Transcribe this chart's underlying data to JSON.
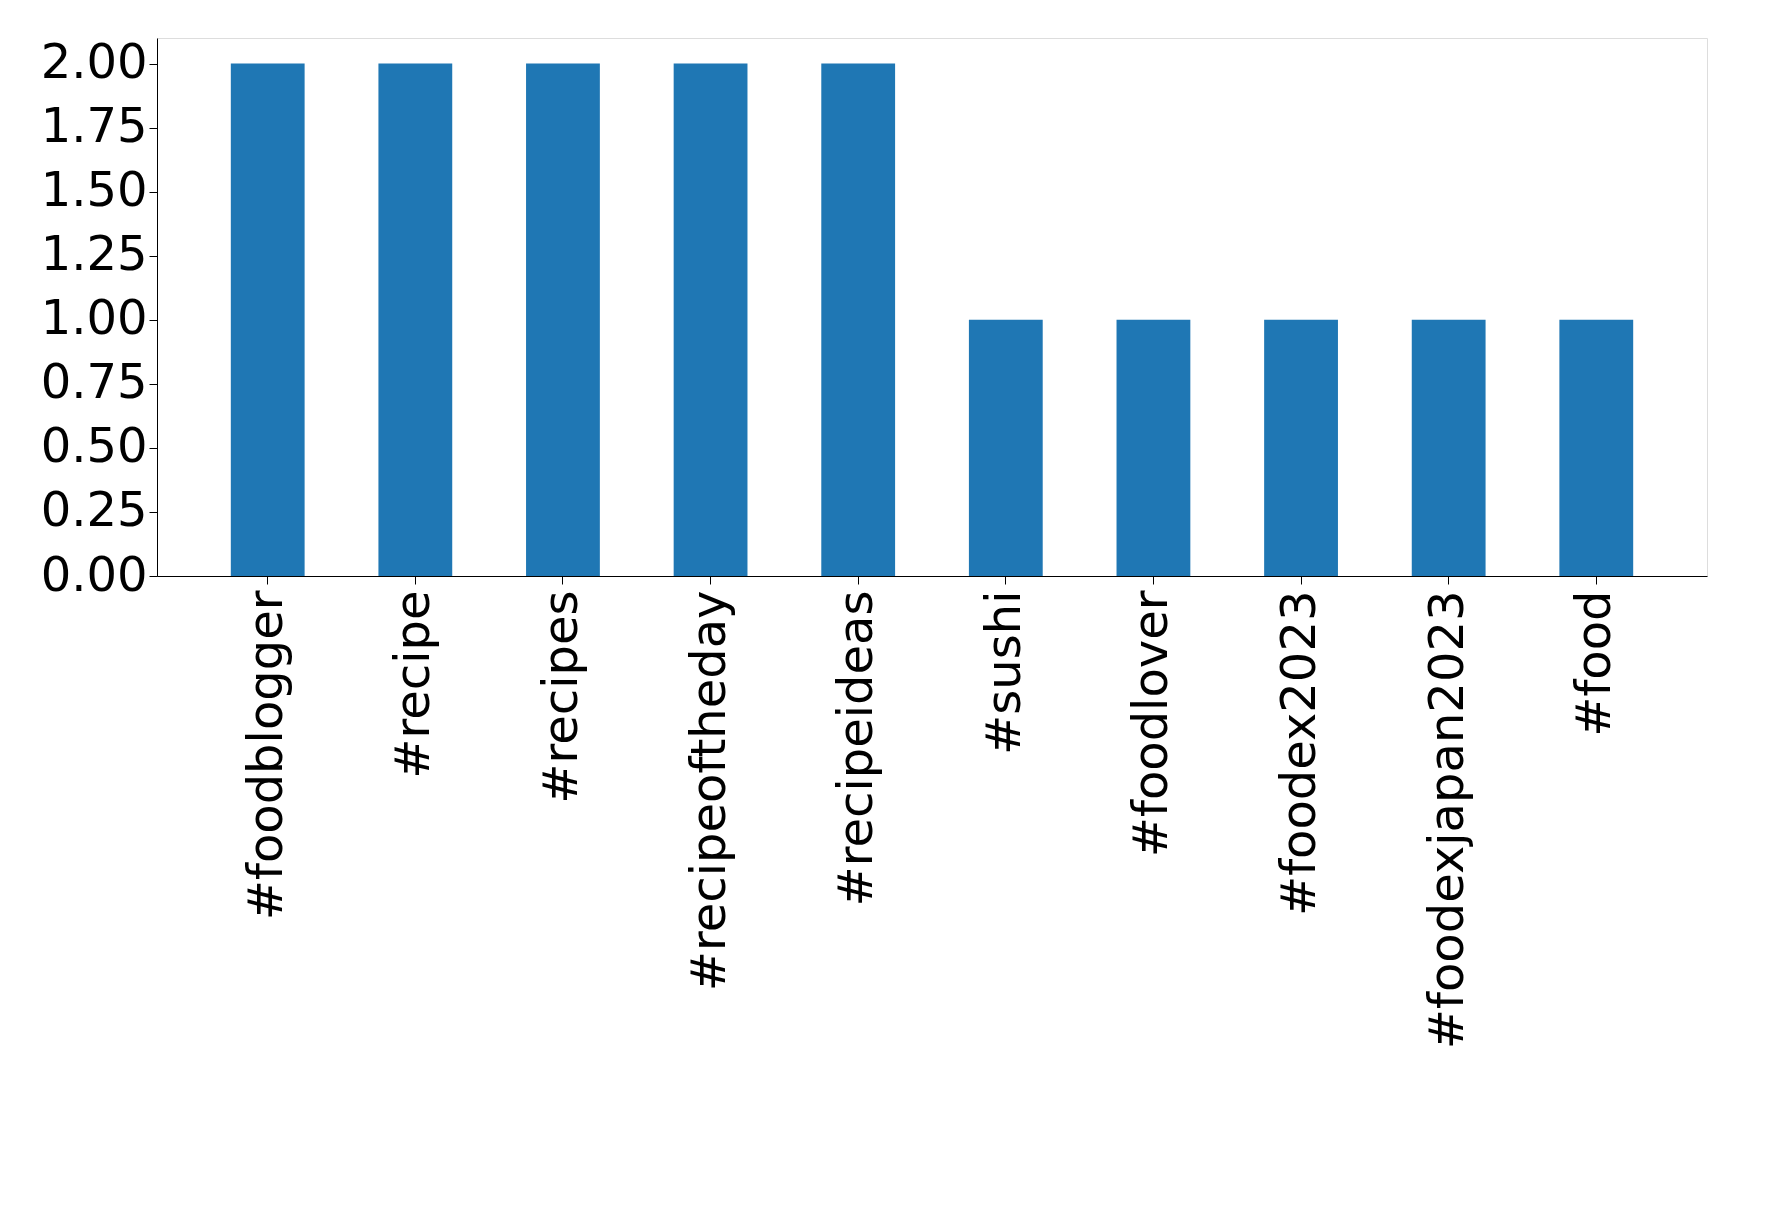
{
  "chart_data": {
    "type": "bar",
    "categories": [
      "#foodblogger",
      "#recipe",
      "#recipes",
      "#recipeoftheday",
      "#recipeideas",
      "#sushi",
      "#foodlover",
      "#foodex2023",
      "#foodexjapan2023",
      "#food"
    ],
    "values": [
      2,
      2,
      2,
      2,
      2,
      1,
      1,
      1,
      1,
      1
    ],
    "color": "#1f77b4",
    "ylim": [
      0,
      2.1
    ],
    "yticks": [
      {
        "value": 0,
        "label": "0.00"
      },
      {
        "value": 0.25,
        "label": "0.25"
      },
      {
        "value": 0.5,
        "label": "0.50"
      },
      {
        "value": 0.75,
        "label": "0.75"
      },
      {
        "value": 1,
        "label": "1.00"
      },
      {
        "value": 1.25,
        "label": "1.25"
      },
      {
        "value": 1.5,
        "label": "1.50"
      },
      {
        "value": 1.75,
        "label": "1.75"
      },
      {
        "value": 2,
        "label": "2.00"
      }
    ],
    "grid": false
  }
}
